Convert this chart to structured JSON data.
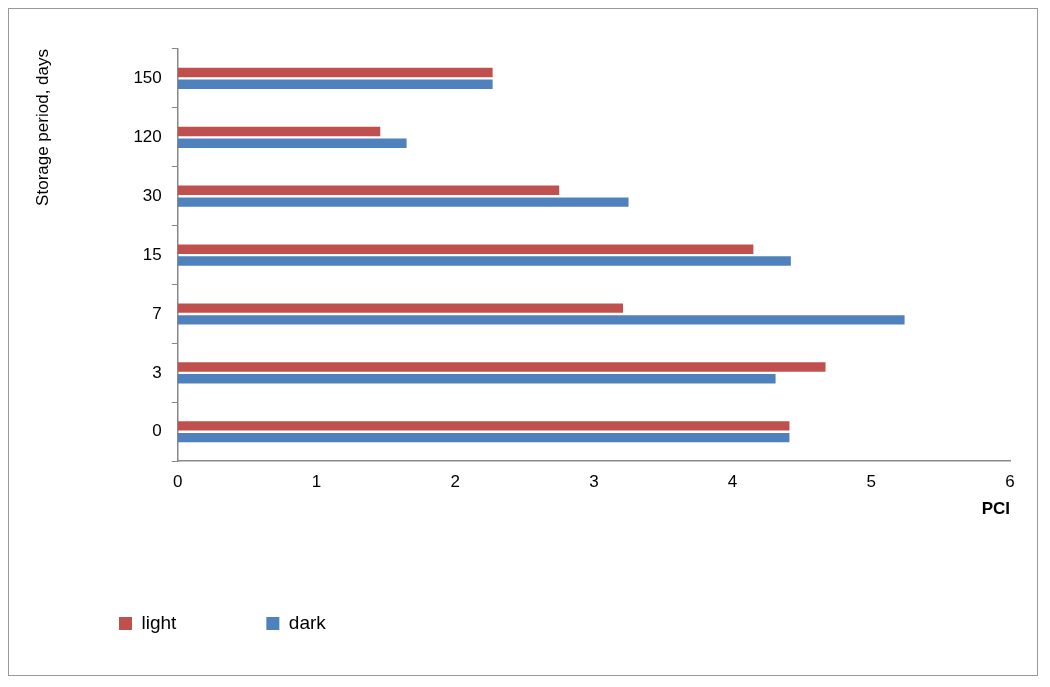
{
  "chart_data": {
    "type": "bar",
    "orientation": "horizontal",
    "xlabel": "PCI",
    "ylabel": "Storage period, days",
    "categories": [
      "150",
      "120",
      "30",
      "15",
      "7",
      "3",
      "0"
    ],
    "series": [
      {
        "name": "light",
        "color": "#c0504d",
        "values": [
          2.27,
          1.46,
          2.75,
          4.15,
          3.21,
          4.67,
          4.41
        ]
      },
      {
        "name": "dark",
        "color": "#4f81bd",
        "values": [
          2.27,
          1.65,
          3.25,
          4.42,
          5.24,
          4.31,
          4.41
        ]
      }
    ],
    "xlim": [
      0,
      6
    ],
    "xticks": [
      0,
      1,
      2,
      3,
      4,
      5,
      6
    ],
    "grid": false,
    "legend": "bottom left"
  }
}
